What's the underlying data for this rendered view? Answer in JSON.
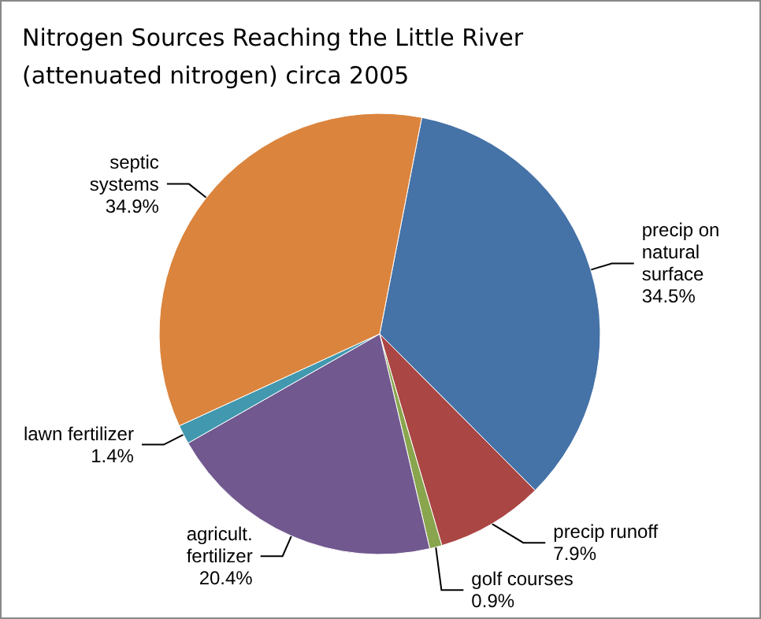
{
  "chart_data": {
    "type": "pie",
    "title": "Nitrogen Sources Reaching the Little River (attenuated nitrogen) circa 2005",
    "categories": [
      "precip on natural surface",
      "precip runoff",
      "golf courses",
      "agricult. fertilizer",
      "lawn fertilizer",
      "septic systems"
    ],
    "values": [
      34.5,
      7.9,
      0.9,
      20.4,
      1.4,
      34.9
    ],
    "value_labels": [
      "34.5%",
      "7.9%",
      "0.9%",
      "20.4%",
      "1.4%",
      "34.9%"
    ],
    "colors": [
      "#4572a7",
      "#aa4643",
      "#89a54e",
      "#71588f",
      "#4198af",
      "#db843d"
    ],
    "legend": false
  }
}
